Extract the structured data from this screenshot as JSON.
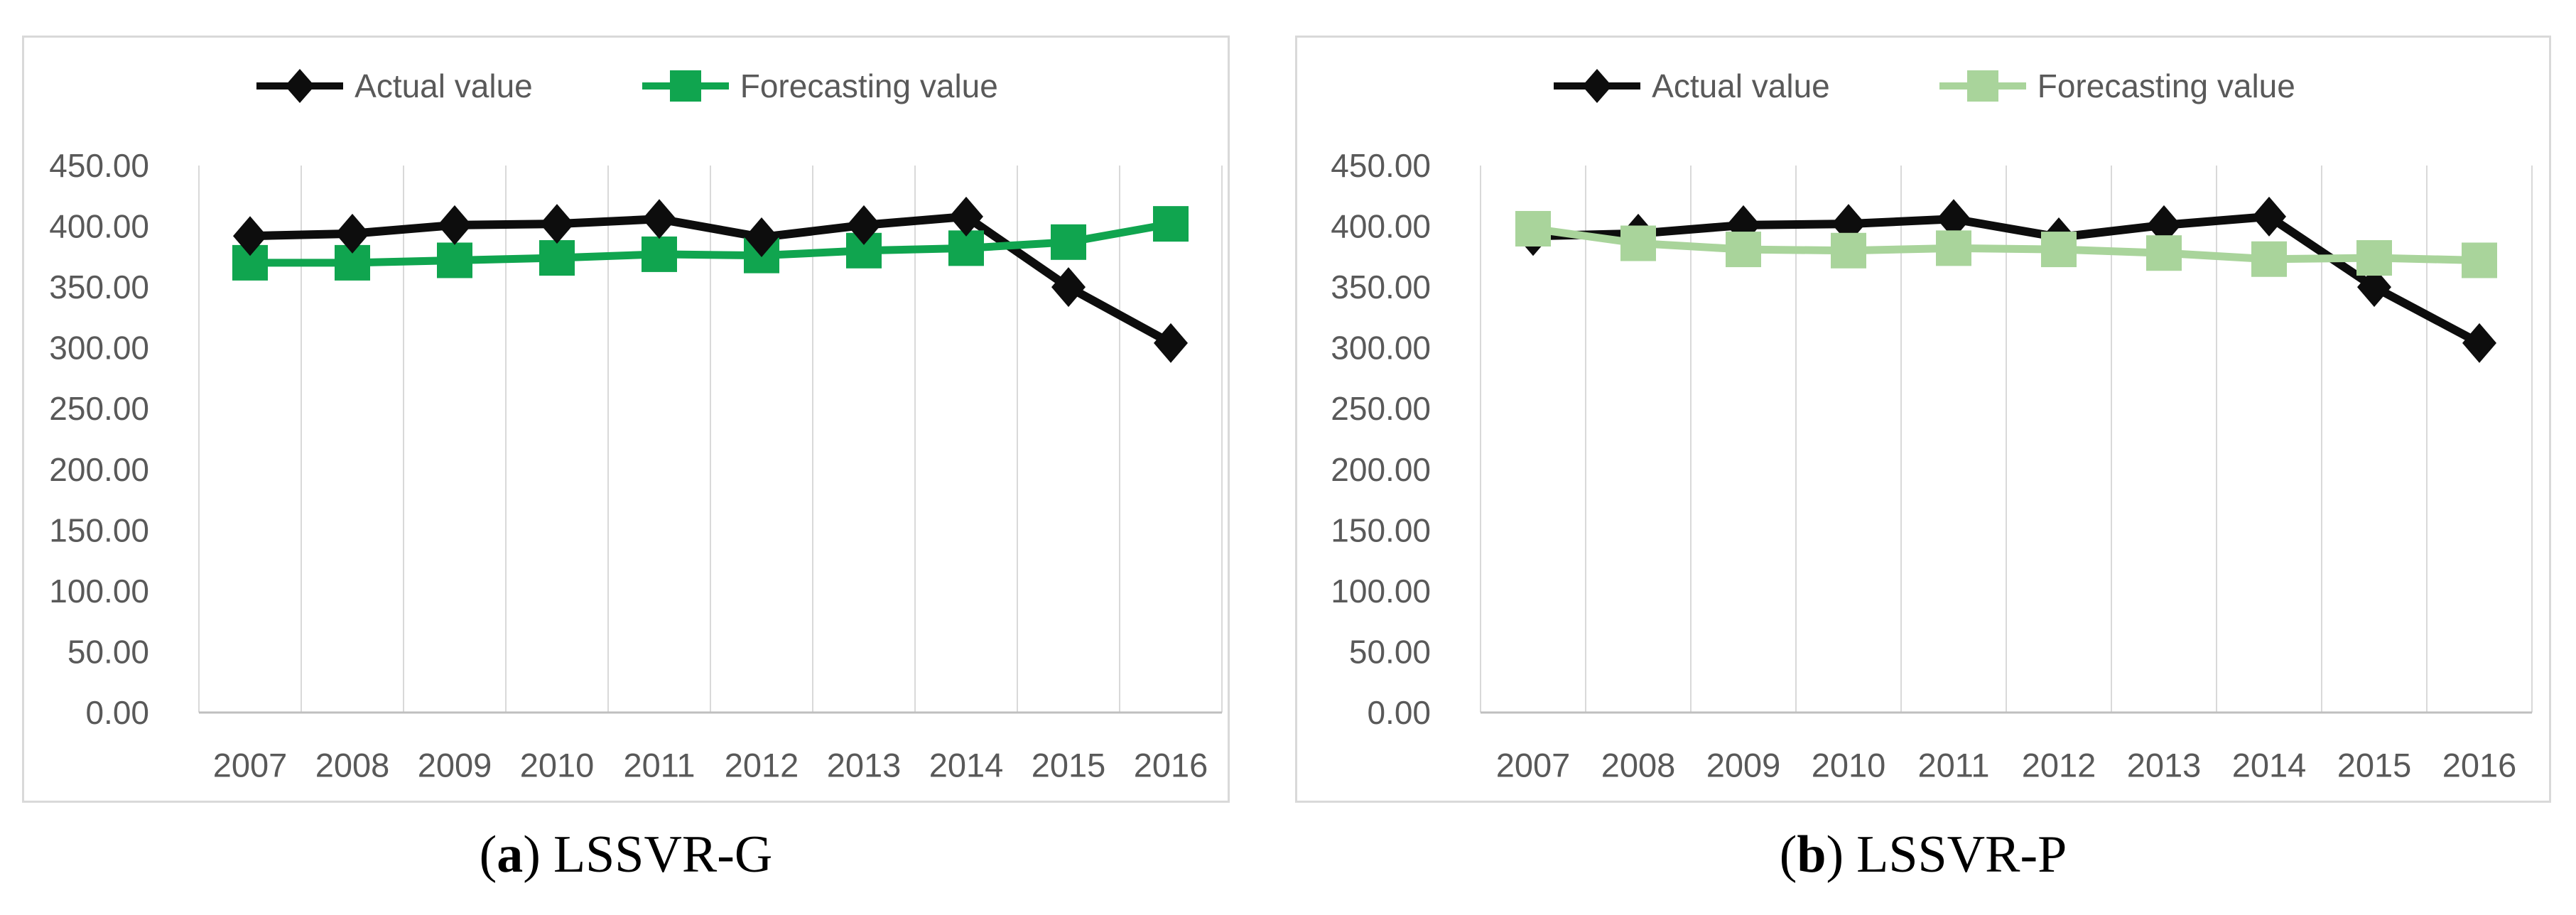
{
  "figure": {
    "panels": [
      {
        "caption": {
          "open": "(",
          "letter": "a",
          "close": ")",
          "label": "LSSVR-G"
        }
      },
      {
        "caption": {
          "open": "(",
          "letter": "b",
          "close": ")",
          "label": "LSSVR-P"
        }
      }
    ],
    "text_color": "#595959",
    "gridline_color": "#d9d9d9",
    "axis_line_color": "#bfbfbf",
    "panel_border_color": "#d9d9d9"
  },
  "chart_data": [
    {
      "type": "line",
      "title": "",
      "categories": [
        "2007",
        "2008",
        "2009",
        "2010",
        "2011",
        "2012",
        "2013",
        "2014",
        "2015",
        "2016"
      ],
      "series": [
        {
          "name": "Actual value",
          "color": "#0d0d0d",
          "marker": "diamond",
          "values": [
            392,
            394,
            401,
            402,
            406,
            391,
            401,
            408,
            350,
            304
          ]
        },
        {
          "name": "Forecasting value",
          "color": "#10a54f",
          "marker": "square",
          "values": [
            370,
            370,
            372,
            374,
            377,
            376,
            380,
            382,
            387,
            402
          ]
        }
      ],
      "ylim": [
        0,
        450
      ],
      "ytick_step": 50,
      "ytick_labels": [
        "0.00",
        "50.00",
        "100.00",
        "150.00",
        "200.00",
        "250.00",
        "300.00",
        "350.00",
        "400.00",
        "450.00"
      ],
      "xlabel": "",
      "ylabel": "",
      "grid": "vertical-only",
      "legend_position": "top",
      "front_series": 0
    },
    {
      "type": "line",
      "title": "",
      "categories": [
        "2007",
        "2008",
        "2009",
        "2010",
        "2011",
        "2012",
        "2013",
        "2014",
        "2015",
        "2016"
      ],
      "series": [
        {
          "name": "Actual value",
          "color": "#0d0d0d",
          "marker": "diamond",
          "values": [
            392,
            394,
            401,
            402,
            406,
            391,
            401,
            408,
            350,
            304
          ]
        },
        {
          "name": "Forecasting value",
          "color": "#a9d49b",
          "marker": "square",
          "values": [
            398,
            386,
            381,
            380,
            382,
            381,
            378,
            373,
            374,
            372
          ]
        }
      ],
      "ylim": [
        0,
        450
      ],
      "ytick_step": 50,
      "ytick_labels": [
        "0.00",
        "50.00",
        "100.00",
        "150.00",
        "200.00",
        "250.00",
        "300.00",
        "350.00",
        "400.00",
        "450.00"
      ],
      "xlabel": "",
      "ylabel": "",
      "grid": "vertical-only",
      "legend_position": "top",
      "front_series": 1
    }
  ]
}
